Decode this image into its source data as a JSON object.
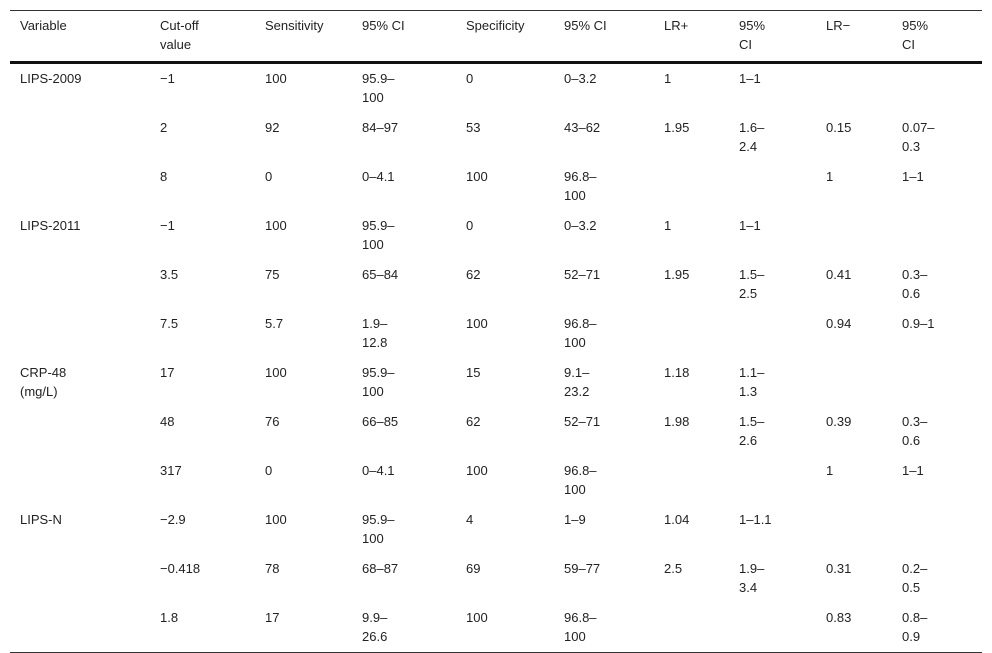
{
  "headers": [
    "Variable",
    "Cut-off value",
    "Sensitivity",
    "95% CI",
    "Specificity",
    "95% CI",
    "LR+",
    "95% CI",
    "LR−",
    "95% CI"
  ],
  "rows": [
    [
      "LIPS-2009",
      "−1",
      "100",
      "95.9–100",
      "0",
      "0–3.2",
      "1",
      "1–1",
      "",
      ""
    ],
    [
      "",
      "2",
      "92",
      "84–97",
      "53",
      "43–62",
      "1.95",
      "1.6–2.4",
      "0.15",
      "0.07–0.3"
    ],
    [
      "",
      "8",
      "0",
      "0–4.1",
      "100",
      "96.8–100",
      "",
      "",
      "1",
      "1–1"
    ],
    [
      "LIPS-2011",
      "−1",
      "100",
      "95.9–100",
      "0",
      "0–3.2",
      "1",
      "1–1",
      "",
      ""
    ],
    [
      "",
      "3.5",
      "75",
      "65–84",
      "62",
      "52–71",
      "1.95",
      "1.5–2.5",
      "0.41",
      "0.3–0.6"
    ],
    [
      "",
      "7.5",
      "5.7",
      "1.9–12.8",
      "100",
      "96.8–100",
      "",
      "",
      "0.94",
      "0.9–1"
    ],
    [
      "CRP-48 (mg/L)",
      "17",
      "100",
      "95.9–100",
      "15",
      "9.1–23.2",
      "1.18",
      "1.1–1.3",
      "",
      ""
    ],
    [
      "",
      "48",
      "76",
      "66–85",
      "62",
      "52–71",
      "1.98",
      "1.5–2.6",
      "0.39",
      "0.3–0.6"
    ],
    [
      "",
      "317",
      "0",
      "0–4.1",
      "100",
      "96.8–100",
      "",
      "",
      "1",
      "1–1"
    ],
    [
      "LIPS-N",
      "−2.9",
      "100",
      "95.9–100",
      "4",
      "1–9",
      "1.04",
      "1–1.1",
      "",
      ""
    ],
    [
      "",
      "−0.418",
      "78",
      "68–87",
      "69",
      "59–77",
      "2.5",
      "1.9–3.4",
      "0.31",
      "0.2–0.5"
    ],
    [
      "",
      "1.8",
      "17",
      "9.9–26.6",
      "100",
      "96.8–100",
      "",
      "",
      "0.83",
      "0.8–0.9"
    ]
  ]
}
